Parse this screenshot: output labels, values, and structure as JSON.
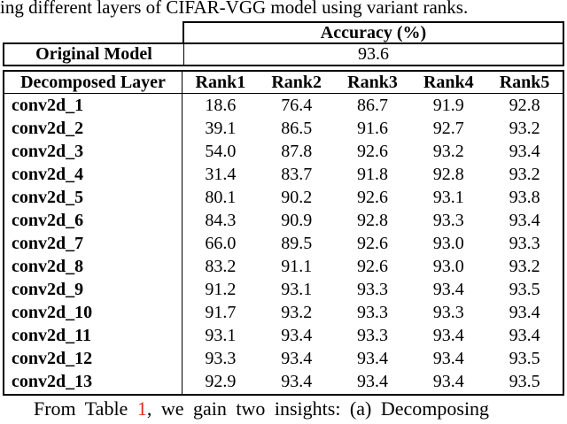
{
  "caption_top": "ing different layers of CIFAR-VGG model using variant ranks.",
  "accuracy_table": {
    "header": "Accuracy (%)",
    "row_label": "Original Model",
    "row_value": "93.6"
  },
  "rank_table": {
    "layer_header": "Decomposed Layer",
    "rank_headers": [
      "Rank1",
      "Rank2",
      "Rank3",
      "Rank4",
      "Rank5"
    ],
    "rows": [
      {
        "layer": "conv2d_1",
        "values": [
          "18.6",
          "76.4",
          "86.7",
          "91.9",
          "92.8"
        ]
      },
      {
        "layer": "conv2d_2",
        "values": [
          "39.1",
          "86.5",
          "91.6",
          "92.7",
          "93.2"
        ]
      },
      {
        "layer": "conv2d_3",
        "values": [
          "54.0",
          "87.8",
          "92.6",
          "93.2",
          "93.4"
        ]
      },
      {
        "layer": "conv2d_4",
        "values": [
          "31.4",
          "83.7",
          "91.8",
          "92.8",
          "93.2"
        ]
      },
      {
        "layer": "conv2d_5",
        "values": [
          "80.1",
          "90.2",
          "92.6",
          "93.1",
          "93.8"
        ]
      },
      {
        "layer": "conv2d_6",
        "values": [
          "84.3",
          "90.9",
          "92.8",
          "93.3",
          "93.4"
        ]
      },
      {
        "layer": "conv2d_7",
        "values": [
          "66.0",
          "89.5",
          "92.6",
          "93.0",
          "93.3"
        ]
      },
      {
        "layer": "conv2d_8",
        "values": [
          "83.2",
          "91.1",
          "92.6",
          "93.0",
          "93.2"
        ]
      },
      {
        "layer": "conv2d_9",
        "values": [
          "91.2",
          "93.1",
          "93.3",
          "93.4",
          "93.5"
        ]
      },
      {
        "layer": "conv2d_10",
        "values": [
          "91.7",
          "93.2",
          "93.3",
          "93.3",
          "93.4"
        ]
      },
      {
        "layer": "conv2d_11",
        "values": [
          "93.1",
          "93.4",
          "93.3",
          "93.4",
          "93.4"
        ]
      },
      {
        "layer": "conv2d_12",
        "values": [
          "93.3",
          "93.4",
          "93.4",
          "93.4",
          "93.5"
        ]
      },
      {
        "layer": "conv2d_13",
        "values": [
          "92.9",
          "93.4",
          "93.4",
          "93.4",
          "93.5"
        ]
      }
    ]
  },
  "body_text": {
    "before_link": "From Table ",
    "link": "1",
    "after_link": ", we gain two insights: (a) Decomposing"
  },
  "colors": {
    "text": "#000000",
    "background": "#ffffff",
    "link_red": "#e8291c"
  }
}
